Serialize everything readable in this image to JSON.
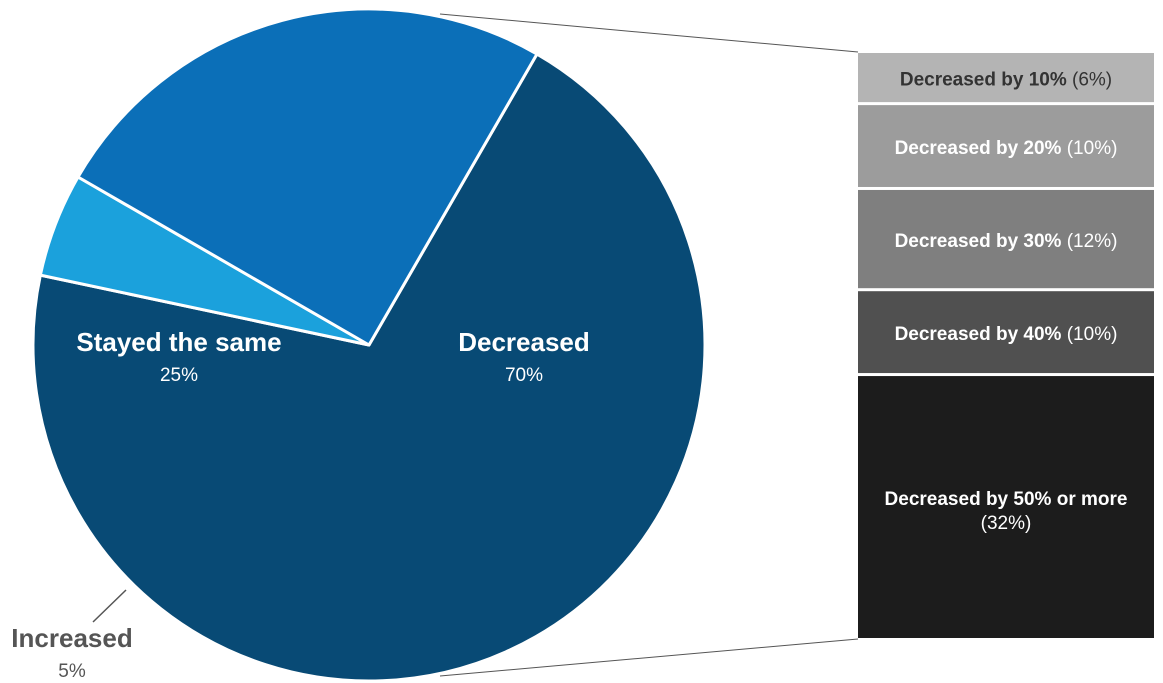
{
  "chart_data": {
    "type": "pie",
    "title": "",
    "colors": {
      "decreased": "#084a75",
      "stayed": "#0b6fb8",
      "increased": "#1ba1dc",
      "dec10": "#b4b4b4",
      "dec20": "#9c9c9c",
      "dec30": "#7f7f7f",
      "dec40": "#505050",
      "dec50": "#1c1c1c"
    },
    "slices": [
      {
        "label": "Decreased",
        "value": 70,
        "value_text": "70%"
      },
      {
        "label": "Increased",
        "value": 5,
        "value_text": "5%"
      },
      {
        "label": "Stayed the same",
        "value": 25,
        "value_text": "25%"
      }
    ],
    "breakdown": {
      "parent": "Decreased",
      "segments": [
        {
          "label": "Decreased by 10%",
          "value": 6,
          "value_text": "(6%)"
        },
        {
          "label": "Decreased by 20%",
          "value": 10,
          "value_text": "(10%)"
        },
        {
          "label": "Decreased by 30%",
          "value": 12,
          "value_text": "(12%)"
        },
        {
          "label": "Decreased by 40%",
          "value": 10,
          "value_text": "(10%)"
        },
        {
          "label": "Decreased by 50% or more",
          "value": 32,
          "value_text": "(32%)"
        }
      ]
    }
  }
}
